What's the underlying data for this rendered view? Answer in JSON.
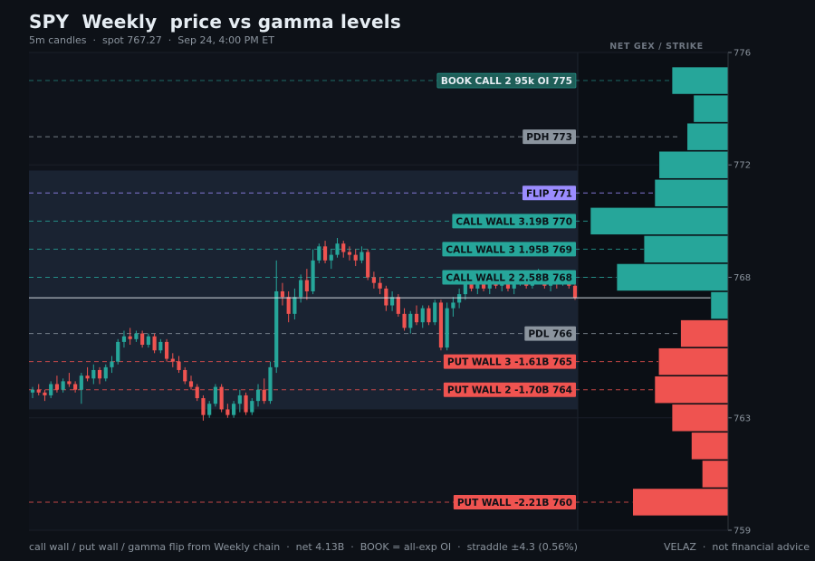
{
  "header": {
    "title": "SPY  Weekly  price vs gamma levels",
    "subtitle": "5m candles  ·  spot 767.27  ·  Sep 24, 4:00 PM ET"
  },
  "footer": {
    "left": "call wall / put wall / gamma flip from Weekly chain  ·  net 4.13B  ·  BOOK = all-exp OI  ·  straddle ±4.3 (0.56%)",
    "right": "VELAZ  ·  not financial advice"
  },
  "colors": {
    "background": "#0d1117",
    "plot_bg": "#0f131b",
    "band": "#1a2332",
    "call": "#26a69a",
    "put": "#ef5350",
    "flip": "#9b8cff",
    "neutral": "#8b949e",
    "spot_line": "#e6edf3"
  },
  "chart_data": {
    "type": "candlestick",
    "y_range": [
      759,
      776
    ],
    "y_ticks": [
      776,
      772,
      768,
      763,
      759
    ],
    "spot": 767.27,
    "expected_move_band": [
      763.3,
      771.8
    ],
    "gex_header": "NET GEX / STRIKE",
    "levels": [
      {
        "label": "BOOK CALL 2  95k OI 775",
        "price": 775,
        "kind": "book"
      },
      {
        "label": "PDH 773",
        "price": 773,
        "kind": "neutral"
      },
      {
        "label": "FLIP 771",
        "price": 771,
        "kind": "flip"
      },
      {
        "label": "CALL WALL  3.19B 770",
        "price": 770,
        "kind": "call"
      },
      {
        "label": "CALL WALL 3  1.95B 769",
        "price": 769,
        "kind": "call"
      },
      {
        "label": "CALL WALL 2  2.58B 768",
        "price": 768,
        "kind": "call"
      },
      {
        "label": "PDL 766",
        "price": 766,
        "kind": "neutral"
      },
      {
        "label": "PUT WALL 3  -1.61B 765",
        "price": 765,
        "kind": "put"
      },
      {
        "label": "PUT WALL 2  -1.70B 764",
        "price": 764,
        "kind": "put"
      },
      {
        "label": "PUT WALL  -2.21B 760",
        "price": 760,
        "kind": "put"
      }
    ],
    "gex_strikes": [
      {
        "strike": 775,
        "gex": 1.3
      },
      {
        "strike": 774,
        "gex": 0.8
      },
      {
        "strike": 773,
        "gex": 0.95
      },
      {
        "strike": 772,
        "gex": 1.6
      },
      {
        "strike": 771,
        "gex": 1.7
      },
      {
        "strike": 770,
        "gex": 3.19
      },
      {
        "strike": 769,
        "gex": 1.95
      },
      {
        "strike": 768,
        "gex": 2.58
      },
      {
        "strike": 767,
        "gex": 0.4
      },
      {
        "strike": 766,
        "gex": -1.1
      },
      {
        "strike": 765,
        "gex": -1.61
      },
      {
        "strike": 764,
        "gex": -1.7
      },
      {
        "strike": 763,
        "gex": -1.3
      },
      {
        "strike": 762,
        "gex": -0.85
      },
      {
        "strike": 761,
        "gex": -0.6
      },
      {
        "strike": 760,
        "gex": -2.21
      }
    ],
    "candles": [
      [
        763.9,
        764.1,
        763.7,
        764.0
      ],
      [
        764.0,
        764.2,
        763.8,
        763.9
      ],
      [
        763.9,
        764.0,
        763.6,
        763.8
      ],
      [
        763.8,
        764.3,
        763.7,
        764.2
      ],
      [
        764.2,
        764.5,
        763.9,
        764.0
      ],
      [
        764.0,
        764.4,
        763.9,
        764.3
      ],
      [
        764.3,
        764.6,
        764.1,
        764.2
      ],
      [
        764.2,
        764.3,
        763.9,
        764.0
      ],
      [
        764.0,
        764.6,
        763.5,
        764.5
      ],
      [
        764.5,
        764.8,
        764.3,
        764.4
      ],
      [
        764.4,
        764.9,
        764.2,
        764.7
      ],
      [
        764.7,
        764.8,
        764.2,
        764.4
      ],
      [
        764.4,
        764.9,
        764.3,
        764.8
      ],
      [
        764.8,
        765.2,
        764.6,
        765.0
      ],
      [
        765.0,
        765.8,
        764.9,
        765.7
      ],
      [
        765.7,
        766.1,
        765.5,
        765.9
      ],
      [
        765.9,
        766.2,
        765.6,
        765.8
      ],
      [
        765.8,
        766.1,
        765.7,
        766.0
      ],
      [
        766.0,
        766.1,
        765.5,
        765.6
      ],
      [
        765.6,
        766.0,
        765.5,
        765.9
      ],
      [
        765.9,
        766.0,
        765.3,
        765.4
      ],
      [
        765.4,
        765.8,
        765.3,
        765.7
      ],
      [
        765.7,
        765.8,
        765.0,
        765.1
      ],
      [
        765.1,
        765.3,
        764.8,
        765.0
      ],
      [
        765.0,
        765.2,
        764.6,
        764.7
      ],
      [
        764.7,
        764.8,
        764.2,
        764.3
      ],
      [
        764.3,
        764.5,
        764.0,
        764.1
      ],
      [
        764.1,
        764.2,
        763.6,
        763.7
      ],
      [
        763.7,
        763.8,
        762.9,
        763.1
      ],
      [
        763.1,
        763.6,
        763.0,
        763.5
      ],
      [
        763.5,
        764.2,
        763.4,
        764.1
      ],
      [
        764.1,
        764.2,
        763.2,
        763.3
      ],
      [
        763.3,
        763.5,
        763.0,
        763.1
      ],
      [
        763.1,
        763.6,
        763.0,
        763.5
      ],
      [
        763.5,
        764.0,
        763.2,
        763.8
      ],
      [
        763.8,
        763.9,
        763.1,
        763.2
      ],
      [
        763.2,
        763.7,
        763.1,
        763.6
      ],
      [
        763.6,
        764.2,
        763.4,
        764.0
      ],
      [
        764.0,
        764.4,
        763.5,
        763.6
      ],
      [
        763.6,
        765.0,
        763.5,
        764.8
      ],
      [
        764.8,
        768.6,
        764.6,
        767.5
      ],
      [
        767.5,
        767.8,
        767.0,
        767.3
      ],
      [
        767.3,
        767.5,
        766.4,
        766.7
      ],
      [
        766.7,
        767.6,
        766.5,
        767.3
      ],
      [
        767.3,
        768.1,
        767.1,
        767.9
      ],
      [
        767.9,
        768.3,
        767.2,
        767.5
      ],
      [
        767.5,
        769.0,
        767.4,
        768.6
      ],
      [
        768.6,
        769.2,
        768.5,
        769.1
      ],
      [
        769.1,
        769.3,
        768.5,
        768.6
      ],
      [
        768.6,
        769.0,
        768.3,
        768.8
      ],
      [
        768.8,
        769.4,
        768.7,
        769.2
      ],
      [
        769.2,
        769.3,
        768.7,
        768.9
      ],
      [
        768.9,
        769.1,
        768.6,
        768.8
      ],
      [
        768.8,
        769.0,
        768.4,
        768.6
      ],
      [
        768.6,
        769.1,
        768.5,
        768.9
      ],
      [
        768.9,
        769.0,
        767.9,
        768.0
      ],
      [
        768.0,
        768.2,
        767.6,
        767.8
      ],
      [
        767.8,
        768.0,
        767.4,
        767.6
      ],
      [
        767.6,
        767.7,
        766.8,
        767.0
      ],
      [
        767.0,
        767.5,
        766.8,
        767.3
      ],
      [
        767.3,
        767.4,
        766.6,
        766.7
      ],
      [
        766.7,
        766.9,
        766.1,
        766.2
      ],
      [
        766.2,
        766.8,
        766.0,
        766.7
      ],
      [
        766.7,
        767.0,
        766.3,
        766.4
      ],
      [
        766.4,
        767.0,
        766.2,
        766.9
      ],
      [
        766.9,
        767.0,
        766.3,
        766.4
      ],
      [
        766.4,
        767.2,
        766.3,
        767.1
      ],
      [
        767.1,
        767.2,
        765.4,
        765.5
      ],
      [
        765.5,
        767.1,
        765.4,
        766.9
      ],
      [
        766.9,
        767.3,
        766.6,
        767.1
      ],
      [
        767.1,
        767.6,
        766.9,
        767.4
      ],
      [
        767.4,
        768.0,
        767.2,
        767.8
      ],
      [
        767.8,
        768.1,
        767.5,
        767.6
      ],
      [
        767.6,
        768.0,
        767.4,
        767.9
      ],
      [
        767.9,
        768.2,
        767.5,
        767.6
      ],
      [
        767.6,
        768.0,
        767.4,
        767.9
      ],
      [
        767.9,
        768.1,
        767.6,
        767.7
      ],
      [
        767.7,
        768.1,
        767.5,
        768.0
      ],
      [
        768.0,
        768.2,
        767.5,
        767.6
      ],
      [
        767.6,
        768.0,
        767.4,
        767.9
      ],
      [
        767.9,
        768.1,
        767.7,
        768.0
      ],
      [
        768.0,
        768.2,
        767.6,
        767.7
      ],
      [
        767.7,
        768.1,
        767.6,
        768.0
      ],
      [
        768.0,
        768.3,
        767.8,
        768.1
      ],
      [
        768.1,
        768.2,
        767.6,
        767.7
      ],
      [
        767.7,
        768.0,
        767.5,
        767.9
      ],
      [
        767.9,
        768.1,
        767.6,
        767.8
      ],
      [
        767.8,
        768.2,
        767.7,
        768.1
      ],
      [
        768.1,
        768.2,
        767.6,
        767.7
      ],
      [
        767.7,
        767.8,
        767.2,
        767.27
      ]
    ]
  }
}
